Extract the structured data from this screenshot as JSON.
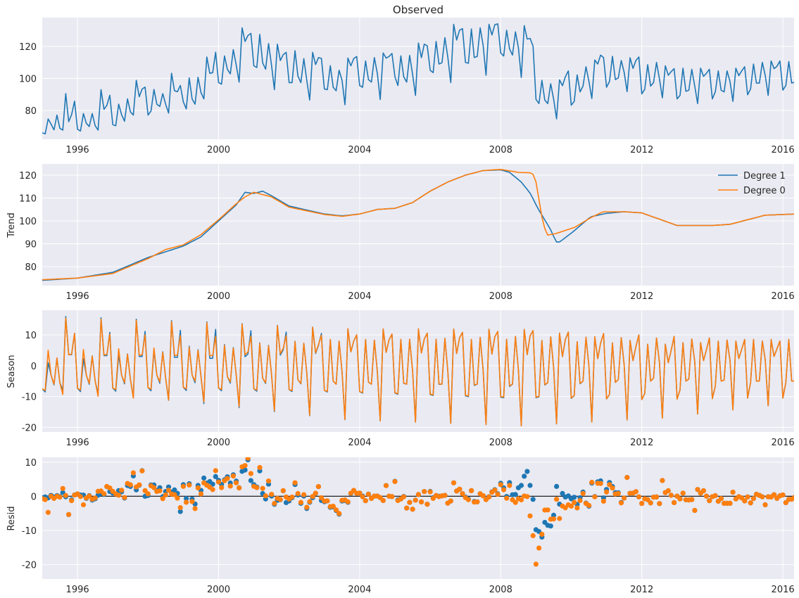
{
  "colors": {
    "degree1": "#1f77b4",
    "degree0": "#ff7f0e",
    "background": "#eaeaf2",
    "grid": "#ffffff"
  },
  "chart_data": [
    {
      "type": "line",
      "title": "Observed",
      "ylabel": "",
      "xlim": [
        "1995-01",
        "2016-05"
      ],
      "ylim": [
        62,
        138
      ],
      "grid": true,
      "x_start": "1995-01",
      "x_step": "month",
      "xticks": [
        "1996",
        "2000",
        "2004",
        "2008",
        "2012",
        "2016"
      ],
      "yticks": [
        80,
        100,
        120
      ],
      "values": [
        66.1,
        65.4,
        74.7,
        71.5,
        67.9,
        77.1,
        68.9,
        67.7,
        90.5,
        73.0,
        77.4,
        85.8,
        68.3,
        67.2,
        78.1,
        72.0,
        70.0,
        78.1,
        70.5,
        67.7,
        93.0,
        80.7,
        83.2,
        89.5,
        71.2,
        70.5,
        83.9,
        77.4,
        73.3,
        87.2,
        79.1,
        77.1,
        98.8,
        88.6,
        93.4,
        94.6,
        77.1,
        79.6,
        93.1,
        83.9,
        82.5,
        90.5,
        83.9,
        78.4,
        103.2,
        92.3,
        91.7,
        95.6,
        85.4,
        81.0,
        100.3,
        87.2,
        83.9,
        100.7,
        91.2,
        87.2,
        113.4,
        103.2,
        103.6,
        116.4,
        97.4,
        96.5,
        114.0,
        105.7,
        102.9,
        118.0,
        108.3,
        97.7,
        131.6,
        123.1,
        126.8,
        128.1,
        107.9,
        106.8,
        127.5,
        109.8,
        105.8,
        121.8,
        108.3,
        93.0,
        121.4,
        111.2,
        114.8,
        116.3,
        97.4,
        97.4,
        117.3,
        101.5,
        97.4,
        112.4,
        98.8,
        86.5,
        116.3,
        108.7,
        113.0,
        112.5,
        93.4,
        93.0,
        108.0,
        94.5,
        92.3,
        105.1,
        98.8,
        83.6,
        112.7,
        107.9,
        112.4,
        113.7,
        95.5,
        94.5,
        110.9,
        99.3,
        97.7,
        113.0,
        103.2,
        86.8,
        115.9,
        112.7,
        113.7,
        115.6,
        101.0,
        95.6,
        114.1,
        101.0,
        97.7,
        114.4,
        102.5,
        89.4,
        122.1,
        113.0,
        121.4,
        120.4,
        105.1,
        103.6,
        123.1,
        109.0,
        109.8,
        125.5,
        113.4,
        97.4,
        133.8,
        124.0,
        130.1,
        131.1,
        110.0,
        109.5,
        130.9,
        113.1,
        113.7,
        131.6,
        120.7,
        102.0,
        133.8,
        127.2,
        133.5,
        134.1,
        115.9,
        114.0,
        130.1,
        118.5,
        114.6,
        129.1,
        119.2,
        100.6,
        133.0,
        124.6,
        125.0,
        120.2,
        86.9,
        84.3,
        98.8,
        86.5,
        84.3,
        96.7,
        86.9,
        74.8,
        99.1,
        95.5,
        101.0,
        104.7,
        83.3,
        85.7,
        102.2,
        91.6,
        95.2,
        107.3,
        98.1,
        87.5,
        111.5,
        109.0,
        114.6,
        113.0,
        94.5,
        98.1,
        113.8,
        99.3,
        100.3,
        111.2,
        103.9,
        91.8,
        112.9,
        106.3,
        111.2,
        113.4,
        90.4,
        93.3,
        108.6,
        95.2,
        97.4,
        110.0,
        99.6,
        87.9,
        107.9,
        102.0,
        104.2,
        106.1,
        87.2,
        89.4,
        106.4,
        92.0,
        92.6,
        105.7,
        95.2,
        84.3,
        106.4,
        101.3,
        103.2,
        105.7,
        87.2,
        91.6,
        104.7,
        92.6,
        91.6,
        104.7,
        98.1,
        85.7,
        106.4,
        101.7,
        104.7,
        107.3,
        89.8,
        93.4,
        109.0,
        97.1,
        97.1,
        110.0,
        102.0,
        89.4,
        110.9,
        106.1,
        107.6,
        110.9,
        92.7,
        95.5,
        110.5,
        97.1,
        97.7
      ]
    },
    {
      "type": "line",
      "title": "",
      "ylabel": "Trend",
      "ylim": [
        71.7,
        124.9
      ],
      "grid": true,
      "legend": "top-right",
      "xticks": [
        "1996",
        "2000",
        "2004",
        "2008",
        "2012",
        "2016"
      ],
      "yticks": [
        80,
        90,
        100,
        110,
        120
      ],
      "series": [
        {
          "name": "Degree 1",
          "points": [
            [
              1995.0,
              74.0
            ],
            [
              1996.0,
              75.0
            ],
            [
              1997.0,
              77.5
            ],
            [
              1998.0,
              84.0
            ],
            [
              1999.0,
              89.0
            ],
            [
              1999.5,
              93.0
            ],
            [
              2000.0,
              100.0
            ],
            [
              2000.5,
              107.0
            ],
            [
              2000.75,
              112.5
            ],
            [
              2001.0,
              112.0
            ],
            [
              2001.25,
              113.0
            ],
            [
              2001.5,
              111.0
            ],
            [
              2002.0,
              106.5
            ],
            [
              2003.0,
              103.0
            ],
            [
              2003.5,
              102.2
            ],
            [
              2004.0,
              103.0
            ],
            [
              2004.5,
              105.0
            ],
            [
              2005.0,
              105.5
            ],
            [
              2005.5,
              108.0
            ],
            [
              2006.0,
              113.0
            ],
            [
              2006.5,
              117.0
            ],
            [
              2007.0,
              120.0
            ],
            [
              2007.5,
              122.0
            ],
            [
              2008.0,
              122.3
            ],
            [
              2008.25,
              121.2
            ],
            [
              2008.58,
              117.0
            ],
            [
              2008.85,
              111.8
            ],
            [
              2009.05,
              105.5
            ],
            [
              2009.4,
              96.6
            ],
            [
              2009.57,
              90.8
            ],
            [
              2009.67,
              90.8
            ],
            [
              2010.03,
              95.0
            ],
            [
              2010.55,
              101.8
            ],
            [
              2011.0,
              103.3
            ],
            [
              2011.5,
              104.0
            ],
            [
              2012.0,
              103.5
            ],
            [
              2013.0,
              98.0
            ],
            [
              2014.0,
              98.0
            ],
            [
              2014.5,
              98.5
            ],
            [
              2015.0,
              100.5
            ],
            [
              2015.5,
              102.5
            ],
            [
              2016.33,
              103.0
            ]
          ]
        },
        {
          "name": "Degree 0",
          "points": [
            [
              1995.0,
              74.3
            ],
            [
              1996.0,
              75.0
            ],
            [
              1997.0,
              77.0
            ],
            [
              1998.0,
              83.5
            ],
            [
              1998.5,
              87.5
            ],
            [
              1999.0,
              89.5
            ],
            [
              1999.5,
              94.0
            ],
            [
              2000.0,
              100.5
            ],
            [
              2000.5,
              107.5
            ],
            [
              2000.75,
              110.5
            ],
            [
              2001.0,
              112.5
            ],
            [
              2001.5,
              110.5
            ],
            [
              2002.0,
              106.0
            ],
            [
              2003.0,
              102.8
            ],
            [
              2003.5,
              102.0
            ],
            [
              2004.0,
              103.0
            ],
            [
              2004.5,
              105.0
            ],
            [
              2005.0,
              105.5
            ],
            [
              2005.5,
              108.0
            ],
            [
              2006.0,
              113.0
            ],
            [
              2006.5,
              117.0
            ],
            [
              2007.0,
              120.0
            ],
            [
              2007.5,
              122.0
            ],
            [
              2008.0,
              122.5
            ],
            [
              2008.5,
              121.2
            ],
            [
              2008.9,
              121.0
            ],
            [
              2009.0,
              117.0
            ],
            [
              2009.17,
              101.4
            ],
            [
              2009.3,
              93.7
            ],
            [
              2009.55,
              94.4
            ],
            [
              2010.1,
              97.2
            ],
            [
              2010.55,
              101.4
            ],
            [
              2010.9,
              104.0
            ],
            [
              2011.5,
              104.0
            ],
            [
              2012.0,
              103.5
            ],
            [
              2013.0,
              98.0
            ],
            [
              2014.0,
              98.0
            ],
            [
              2014.5,
              98.5
            ],
            [
              2015.0,
              100.5
            ],
            [
              2015.5,
              102.5
            ],
            [
              2016.33,
              103.0
            ]
          ]
        }
      ]
    },
    {
      "type": "line",
      "title": "",
      "ylabel": "Season",
      "ylim": [
        -21.5,
        18
      ],
      "grid": true,
      "xticks": [
        "1996",
        "2000",
        "2004",
        "2008",
        "2012",
        "2016"
      ],
      "yticks": [
        -20,
        -10,
        0,
        10
      ],
      "profile_note": "",
      "series": [
        {
          "name": "Degree 1",
          "yearly_profiles": {
            "1995": [
              -7.5,
              -8.5,
              1.0,
              -3.0,
              -6.2,
              2.5,
              -5.5,
              -8.0,
              16.0,
              3.6,
              3.6,
              10.5
            ],
            "1999": [
              -7.0,
              -8.0,
              6.3,
              -3.0,
              -5.5,
              5.2,
              -3.5,
              -12.3,
              14.2,
              2.4,
              2.4,
              11.8
            ],
            "2003": [
              -8.0,
              -8.5,
              8.5,
              -5.0,
              -6.0,
              8.0,
              -2.0,
              -17.5,
              12.0,
              4.5,
              8.0,
              10.0
            ],
            "2008": [
              -10.2,
              -10.4,
              8.6,
              -6.7,
              -6.0,
              9.5,
              -1.3,
              -19.5,
              11.8,
              3.6,
              9.7,
              11.4
            ],
            "2012": [
              -11.0,
              -9.0,
              7.0,
              -5.0,
              -4.0,
              9.0,
              1.0,
              -17.0,
              7.0,
              1.0,
              5.0,
              9.5
            ],
            "2015": [
              -10.5,
              -5.5,
              8.5,
              -5.0,
              -5.0,
              8.0,
              2.0,
              -13.0,
              8.5,
              3.0,
              5.5,
              8.0
            ]
          }
        },
        {
          "name": "Degree 0",
          "yearly_profiles": {
            "1995": [
              -7.5,
              -8.0,
              5.0,
              -3.0,
              -6.0,
              2.5,
              -5.5,
              -9.3,
              15.5,
              3.5,
              3.8,
              10.5
            ],
            "1999": [
              -7.0,
              -7.5,
              6.0,
              -3.0,
              -5.0,
              5.0,
              -3.5,
              -11.8,
              14.0,
              3.3,
              3.3,
              9.5
            ],
            "2003": [
              -8.0,
              -8.3,
              8.5,
              -5.0,
              -6.0,
              8.0,
              -2.0,
              -17.5,
              12.0,
              4.5,
              8.0,
              10.0
            ],
            "2008": [
              -10.0,
              -10.2,
              8.6,
              -6.5,
              -6.0,
              9.5,
              -1.3,
              -19.5,
              11.8,
              3.6,
              9.7,
              11.4
            ],
            "2012": [
              -11.0,
              -9.0,
              7.0,
              -5.0,
              -4.0,
              9.0,
              1.0,
              -17.0,
              7.0,
              1.0,
              5.0,
              9.5
            ],
            "2015": [
              -10.5,
              -5.5,
              8.5,
              -5.0,
              -5.0,
              8.0,
              2.0,
              -13.0,
              8.5,
              3.0,
              5.5,
              8.0
            ]
          }
        }
      ]
    },
    {
      "type": "scatter",
      "title": "",
      "ylabel": "Resid",
      "ylim": [
        -24.2,
        11.4
      ],
      "grid": true,
      "zero_line": true,
      "xticks": [
        "1996",
        "2000",
        "2004",
        "2008",
        "2012",
        "2016"
      ],
      "yticks": [
        -20,
        -10,
        0,
        10
      ],
      "series": [
        {
          "name": "Degree 1"
        },
        {
          "name": "Degree 0"
        }
      ]
    }
  ]
}
